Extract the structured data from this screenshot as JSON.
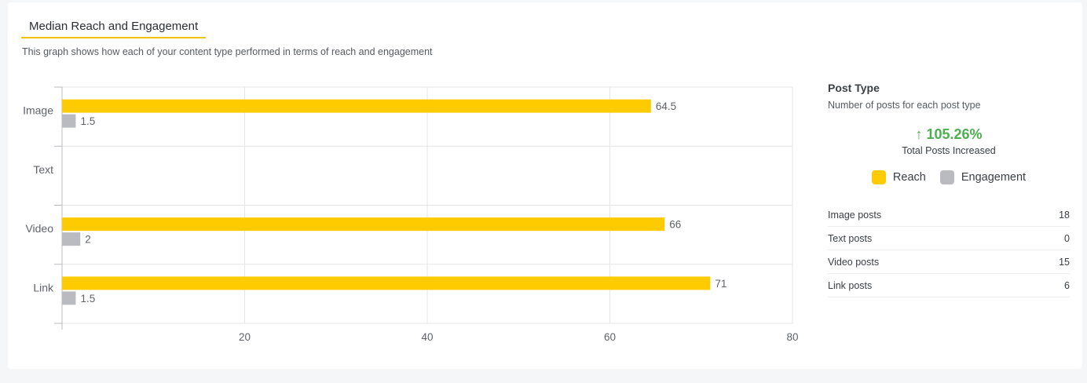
{
  "header": {
    "title": "Median Reach and Engagement",
    "subtitle": "This graph shows how each of your content type performed in terms of reach and engagement"
  },
  "chart_data": {
    "type": "bar",
    "orientation": "horizontal",
    "categories": [
      "Image",
      "Text",
      "Video",
      "Link"
    ],
    "series": [
      {
        "name": "Reach",
        "color": "#fecb00",
        "values": [
          64.5,
          null,
          66,
          71
        ]
      },
      {
        "name": "Engagement",
        "color": "#b9bbc0",
        "values": [
          1.5,
          null,
          2,
          1.5
        ]
      }
    ],
    "xlim": [
      0,
      80
    ],
    "xticks": [
      20,
      40,
      60,
      80
    ],
    "grid": true,
    "legend": "right-panel"
  },
  "side": {
    "title": "Post Type",
    "subtitle": "Number of posts for each post type",
    "kpi_value": "↑ 105.26%",
    "kpi_label": "Total Posts Increased",
    "legend": [
      {
        "label": "Reach",
        "color": "#fecb00"
      },
      {
        "label": "Engagement",
        "color": "#b9bbc0"
      }
    ],
    "counts": [
      {
        "label": "Image posts",
        "value": "18"
      },
      {
        "label": "Text posts",
        "value": "0"
      },
      {
        "label": "Video posts",
        "value": "15"
      },
      {
        "label": "Link posts",
        "value": "6"
      }
    ]
  }
}
